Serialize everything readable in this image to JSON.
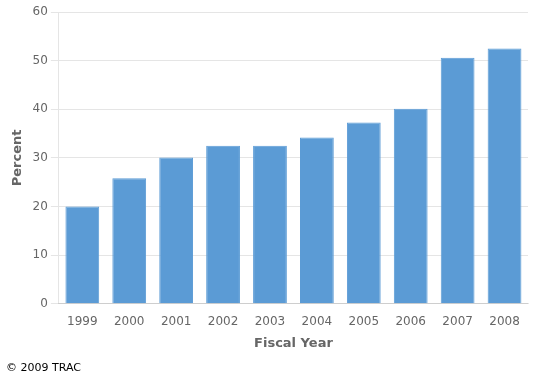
{
  "chart_data": {
    "type": "bar",
    "categories": [
      "1999",
      "2000",
      "2001",
      "2002",
      "2003",
      "2004",
      "2005",
      "2006",
      "2007",
      "2008"
    ],
    "values": [
      20.0,
      25.8,
      30.1,
      32.5,
      32.5,
      34.2,
      37.3,
      40.1,
      50.6,
      52.5
    ],
    "color": "#5b9bd5",
    "xlabel": "Fiscal Year",
    "ylabel": "Percent",
    "ylim": [
      0,
      60
    ],
    "yticks": [
      0,
      10,
      20,
      30,
      40,
      50,
      60
    ],
    "grid": true,
    "annotations": [
      "© 2009 TRAC"
    ]
  }
}
